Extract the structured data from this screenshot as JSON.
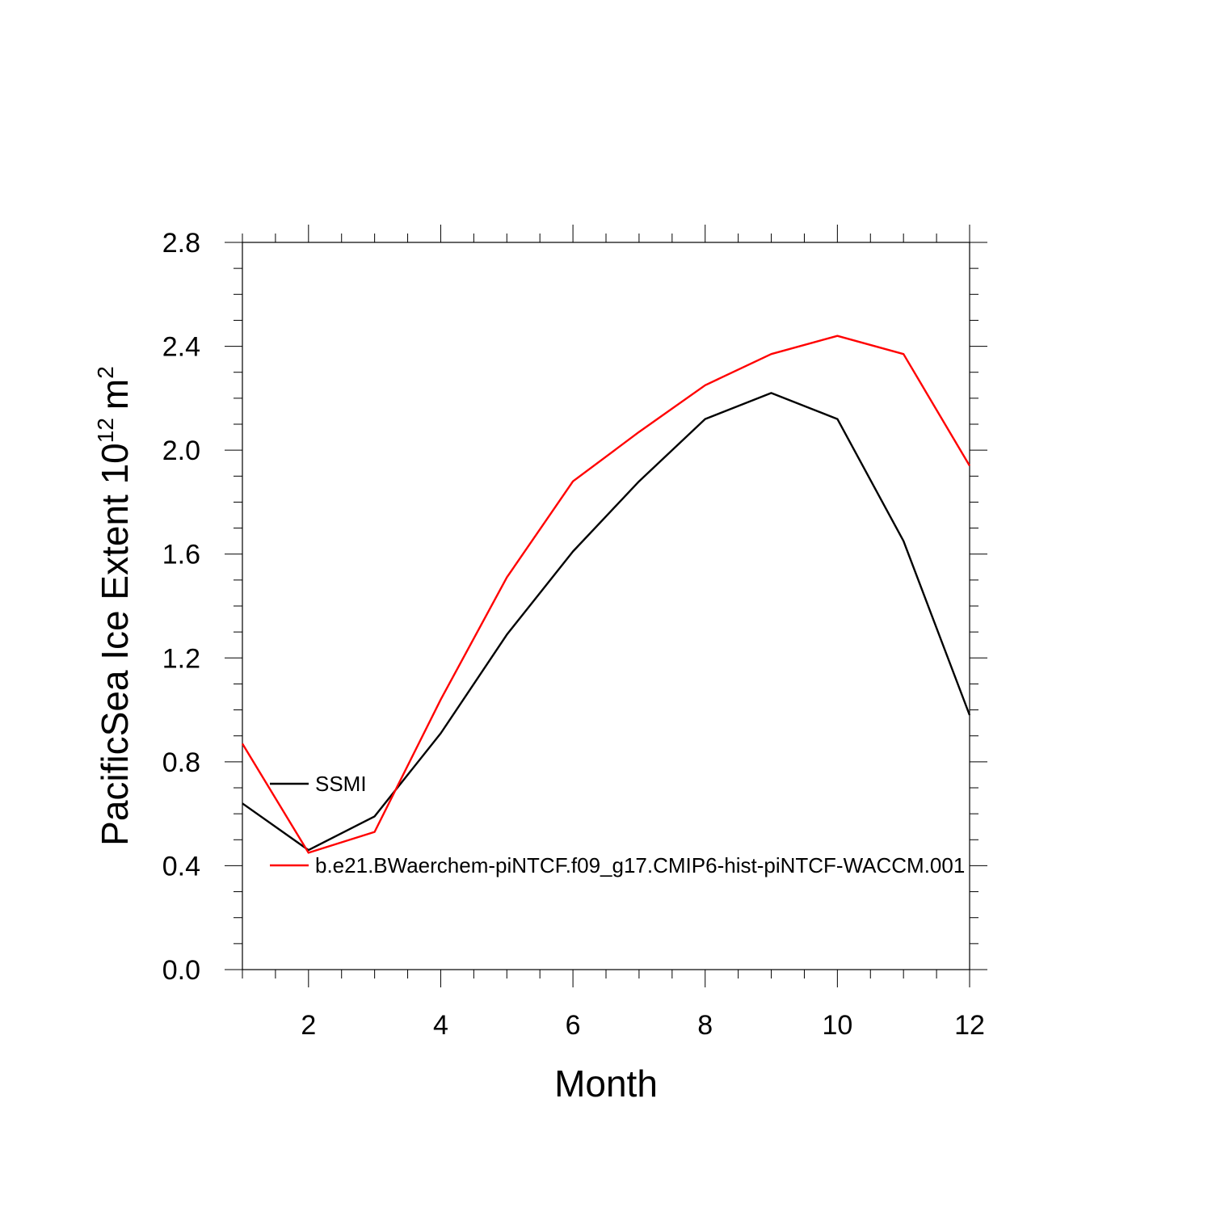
{
  "chart_data": {
    "type": "line",
    "title": "",
    "xlabel": "Month",
    "ylabel": "PacificSea Ice Extent 10",
    "ylabel_sup": "12",
    "ylabel_unit": "m",
    "ylabel_unit_sup": "2",
    "xlim": [
      1,
      12
    ],
    "ylim": [
      0,
      2.8
    ],
    "x_ticks": [
      2,
      4,
      6,
      8,
      10,
      12
    ],
    "x_tick_labels": [
      "2",
      "4",
      "6",
      "8",
      "10",
      "12"
    ],
    "y_ticks": [
      0,
      0.4,
      0.8,
      1.2,
      1.6,
      2.0,
      2.4,
      2.8
    ],
    "y_tick_labels": [
      "0.0",
      "0.4",
      "0.8",
      "1.2",
      "1.6",
      "2.0",
      "2.4",
      "2.8"
    ],
    "x": [
      1,
      2,
      3,
      4,
      5,
      6,
      7,
      8,
      9,
      10,
      11,
      12
    ],
    "series": [
      {
        "name": "SSMI",
        "color": "#000000",
        "values": [
          0.64,
          0.46,
          0.59,
          0.91,
          1.29,
          1.61,
          1.88,
          2.12,
          2.22,
          2.12,
          1.65,
          0.98
        ]
      },
      {
        "name": "b.e21.BWaerchem-piNTCF.f09_g17.CMIP6-hist-piNTCF-WACCM.001",
        "color": "#ff0000",
        "values": [
          0.87,
          0.45,
          0.53,
          1.04,
          1.51,
          1.88,
          2.07,
          2.25,
          2.37,
          2.44,
          2.37,
          1.94
        ]
      }
    ],
    "grid": false,
    "legend_position": "inside-lower-left"
  }
}
